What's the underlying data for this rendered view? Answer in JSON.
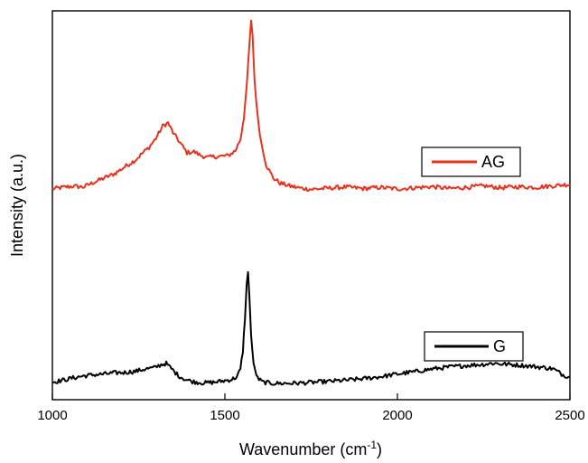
{
  "chart_data": {
    "type": "line",
    "xlabel": "Wavenumber (cm",
    "xlabel_sup": "-1",
    "xlabel_close": ")",
    "ylabel": "Intensity (a.u.)",
    "xlim": [
      1000,
      2500
    ],
    "xticks": [
      "1000",
      "1500",
      "2000",
      "2500"
    ],
    "ylim": [
      0,
      100
    ],
    "grid": false,
    "legend": "per-series boxes at right",
    "series": [
      {
        "name": "AG",
        "color": "#e8321e",
        "points": [
          [
            1000,
            54.2
          ],
          [
            1030,
            54.6
          ],
          [
            1060,
            54.9
          ],
          [
            1090,
            54.7
          ],
          [
            1120,
            55.9
          ],
          [
            1150,
            57.0
          ],
          [
            1180,
            58.1
          ],
          [
            1210,
            59.9
          ],
          [
            1240,
            61.6
          ],
          [
            1260,
            63.3
          ],
          [
            1280,
            64.9
          ],
          [
            1300,
            67.2
          ],
          [
            1320,
            70.4
          ],
          [
            1335,
            71.2
          ],
          [
            1350,
            68.6
          ],
          [
            1370,
            66.1
          ],
          [
            1390,
            63.5
          ],
          [
            1410,
            63.8
          ],
          [
            1430,
            62.8
          ],
          [
            1450,
            62.3
          ],
          [
            1470,
            62.5
          ],
          [
            1490,
            62.6
          ],
          [
            1510,
            62.8
          ],
          [
            1530,
            64.0
          ],
          [
            1545,
            67.0
          ],
          [
            1555,
            72.6
          ],
          [
            1563,
            80.2
          ],
          [
            1570,
            90.0
          ],
          [
            1576,
            97.2
          ],
          [
            1580,
            94.0
          ],
          [
            1586,
            81.9
          ],
          [
            1595,
            72.6
          ],
          [
            1605,
            66.3
          ],
          [
            1620,
            60.3
          ],
          [
            1640,
            57.0
          ],
          [
            1660,
            55.7
          ],
          [
            1690,
            54.9
          ],
          [
            1720,
            54.4
          ],
          [
            1750,
            54.1
          ],
          [
            1800,
            54.4
          ],
          [
            1850,
            54.7
          ],
          [
            1900,
            54.3
          ],
          [
            1950,
            54.6
          ],
          [
            2000,
            54.2
          ],
          [
            2050,
            54.5
          ],
          [
            2100,
            54.8
          ],
          [
            2150,
            54.3
          ],
          [
            2200,
            54.6
          ],
          [
            2250,
            55.0
          ],
          [
            2300,
            54.5
          ],
          [
            2350,
            54.8
          ],
          [
            2400,
            54.6
          ],
          [
            2450,
            55.0
          ],
          [
            2500,
            55.4
          ]
        ]
      },
      {
        "name": "G",
        "color": "#000000",
        "points": [
          [
            1000,
            4.5
          ],
          [
            1030,
            5.0
          ],
          [
            1060,
            5.6
          ],
          [
            1090,
            6.1
          ],
          [
            1120,
            6.4
          ],
          [
            1150,
            6.6
          ],
          [
            1180,
            6.9
          ],
          [
            1210,
            7.0
          ],
          [
            1240,
            7.3
          ],
          [
            1270,
            7.9
          ],
          [
            1295,
            8.2
          ],
          [
            1315,
            9.0
          ],
          [
            1330,
            9.3
          ],
          [
            1345,
            8.0
          ],
          [
            1365,
            6.2
          ],
          [
            1385,
            5.2
          ],
          [
            1410,
            4.6
          ],
          [
            1440,
            4.3
          ],
          [
            1470,
            4.5
          ],
          [
            1500,
            4.9
          ],
          [
            1520,
            5.2
          ],
          [
            1535,
            5.9
          ],
          [
            1545,
            7.8
          ],
          [
            1552,
            12.5
          ],
          [
            1558,
            21.0
          ],
          [
            1563,
            29.5
          ],
          [
            1567,
            32.5
          ],
          [
            1571,
            27.0
          ],
          [
            1576,
            16.5
          ],
          [
            1583,
            9.0
          ],
          [
            1595,
            5.5
          ],
          [
            1610,
            4.5
          ],
          [
            1640,
            4.2
          ],
          [
            1680,
            4.2
          ],
          [
            1720,
            4.3
          ],
          [
            1760,
            4.5
          ],
          [
            1800,
            4.7
          ],
          [
            1850,
            5.0
          ],
          [
            1900,
            5.4
          ],
          [
            1950,
            5.9
          ],
          [
            2000,
            6.6
          ],
          [
            2050,
            7.2
          ],
          [
            2100,
            7.9
          ],
          [
            2150,
            8.4
          ],
          [
            2200,
            8.8
          ],
          [
            2250,
            9.1
          ],
          [
            2280,
            9.4
          ],
          [
            2300,
            9.2
          ],
          [
            2350,
            8.9
          ],
          [
            2400,
            8.5
          ],
          [
            2450,
            8.0
          ],
          [
            2480,
            6.4
          ],
          [
            2500,
            5.8
          ]
        ]
      }
    ]
  }
}
